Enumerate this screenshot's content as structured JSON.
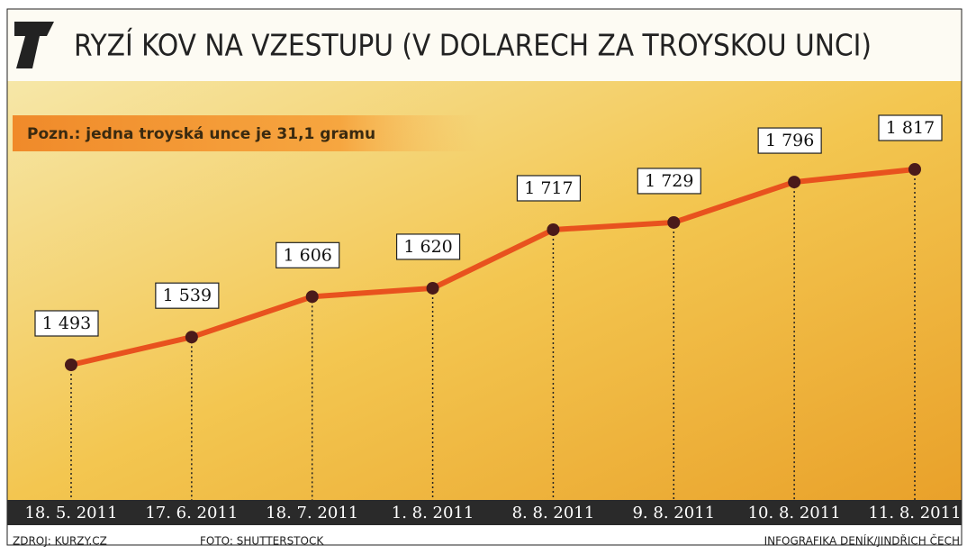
{
  "chart_data": {
    "type": "line",
    "title": "RYZÍ KOV NA VZESTUPU (V DOLARECH ZA TROYSKOU UNCI)",
    "note": "Pozn.: jedna troyská unce je 31,1 gramu",
    "categories": [
      "18. 5. 2011",
      "17. 6. 2011",
      "18. 7. 2011",
      "1. 8. 2011",
      "8. 8. 2011",
      "9. 8. 2011",
      "10. 8. 2011",
      "11. 8. 2011"
    ],
    "values": [
      1493,
      1539,
      1606,
      1620,
      1717,
      1729,
      1796,
      1817
    ],
    "value_labels": [
      "1 493",
      "1 539",
      "1 606",
      "1 620",
      "1 717",
      "1 729",
      "1 796",
      "1 817"
    ],
    "color": "#e8521e",
    "source": "ZDROJ: KURZY.CZ",
    "photo": "FOTO: SHUTTERSTOCK",
    "credit": "INFOGRAFIKA DENÍK/JINDŘICH ČECH"
  }
}
